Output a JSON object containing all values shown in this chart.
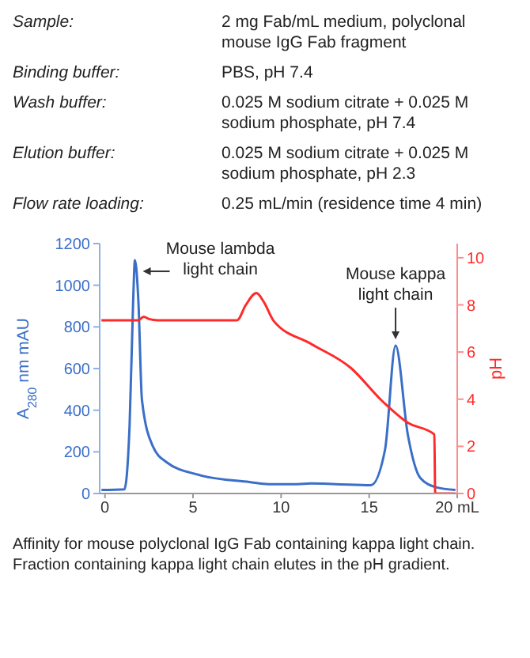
{
  "chart_data": {
    "type": "line",
    "xlabel": null,
    "ylabel": "A$_{280}$ nm mAU",
    "y2label": "pH",
    "annotations": [
      "Sample:",
      "2 mg Fab/mL medium, polyclonal mouse IgG Fab fragment",
      "Binding buffer:",
      "PBS, pH 7.4",
      "Wash buffer:",
      "0.025 M sodium citrate + 0.025 M sodium phosphate, pH 7.4",
      "Elution buffer:",
      "0.025 M sodium citrate + 0.025 M sodium phosphate, pH 2.3",
      "Flow rate loading:",
      "0.25 mL/min (residence time 4 min)",
      {
        "text": "Mouse lambda light chain",
        "x": 1.7,
        "y": 1120
      },
      {
        "text": "Mouse kappa light chain",
        "x": 16.5,
        "y": 710
      },
      "Affinity for mouse polyclonal IgG Fab containing kappa light chain. Fraction containing kappa light chain elutes in the pH gradient."
    ],
    "xlim": [
      -0.3,
      20
    ],
    "xticks": [
      0,
      5,
      10,
      15,
      {
        "value": 20,
        "label": "20 mL"
      }
    ],
    "ylim": [
      0,
      1200
    ],
    "yticks": [
      0,
      200,
      400,
      600,
      800,
      1000,
      1200
    ],
    "y2lim": [
      0,
      10.6
    ],
    "y2ticks": [
      0,
      2,
      4,
      6,
      8,
      10
    ],
    "line_style": "solid",
    "series": [
      {
        "color": "#3a6fc8",
        "x": [
          -0.2,
          1.1,
          1.4,
          1.6,
          1.7,
          1.9,
          2.1,
          2.7,
          3.5,
          5.3,
          8.2,
          9.3,
          10.9,
          11.7,
          13.1,
          15.1,
          15.9,
          16.5,
          17.2,
          17.9,
          18.8,
          19.9
        ],
        "values": [
          17,
          20,
          330,
          920,
          1120,
          920,
          450,
          230,
          150,
          90,
          55,
          45,
          45,
          48,
          45,
          40,
          210,
          710,
          280,
          75,
          30,
          17
        ]
      },
      {
        "color": "#ff2a2a",
        "axis": "y2",
        "x": [
          -0.2,
          1.9,
          2.2,
          2.5,
          3.0,
          7.5,
          8.0,
          8.6,
          9.0,
          9.6,
          11.7,
          14.0,
          15.7,
          17.2,
          18.7,
          18.75,
          19.9
        ],
        "values": [
          7.35,
          7.35,
          7.5,
          7.4,
          7.35,
          7.35,
          8.0,
          8.5,
          8.15,
          7.3,
          6.35,
          5.3,
          3.95,
          3.0,
          2.5,
          0,
          0
        ]
      }
    ]
  }
}
